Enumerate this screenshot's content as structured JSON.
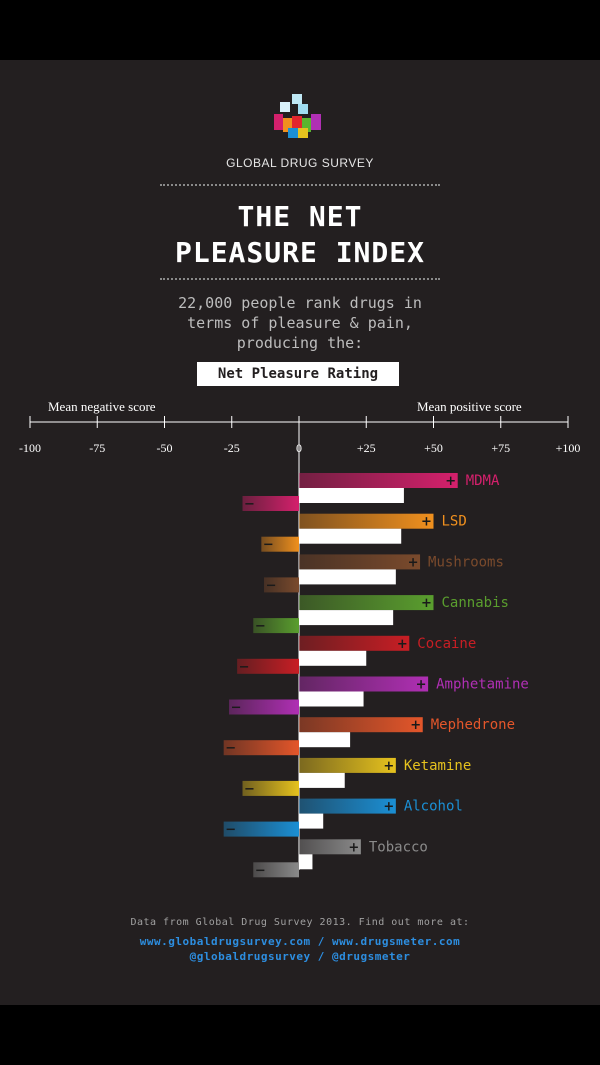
{
  "header": {
    "org": "GLOBAL DRUG SURVEY",
    "title_line1": "THE NET",
    "title_line2": "PLEASURE INDEX",
    "subtitle_line1": "22,000 people rank drugs in",
    "subtitle_line2": "terms of pleasure & pain,",
    "subtitle_line3": "producing the:",
    "rating_label": "Net Pleasure Rating"
  },
  "axis": {
    "negative_label": "Mean negative score",
    "positive_label": "Mean positive score",
    "ticks": [
      "-100",
      "-75",
      "-50",
      "-25",
      "0",
      "+25",
      "+50",
      "+75",
      "+100"
    ]
  },
  "chart_data": {
    "type": "bar",
    "categories": [
      "MDMA",
      "LSD",
      "Mushrooms",
      "Cannabis",
      "Cocaine",
      "Amphetamine",
      "Mephedrone",
      "Ketamine",
      "Alcohol",
      "Tobacco"
    ],
    "series": [
      {
        "name": "Mean positive score",
        "values": [
          59,
          50,
          45,
          50,
          41,
          48,
          46,
          36,
          36,
          23
        ]
      },
      {
        "name": "Mean negative score",
        "values": [
          -21,
          -14,
          -13,
          -17,
          -23,
          -26,
          -28,
          -21,
          -28,
          -17
        ]
      },
      {
        "name": "Net Pleasure Rating",
        "values": [
          39,
          38,
          36,
          35,
          25,
          24,
          19,
          17,
          9,
          5
        ]
      }
    ],
    "colors": [
      "#d4206c",
      "#f0901e",
      "#7a4a2c",
      "#5a9e2e",
      "#c81e24",
      "#b02fb4",
      "#e4562a",
      "#e6c21e",
      "#1b8fd4",
      "#8a8a8a"
    ],
    "xlim": [
      -100,
      100
    ],
    "positive_marker": "+",
    "negative_marker": "−"
  },
  "footer": {
    "line1": "Data from Global Drug Survey 2013. Find out more at:",
    "line2": "www.globaldrugsurvey.com / www.drugsmeter.com",
    "line3": "@globaldrugsurvey / @drugsmeter"
  }
}
